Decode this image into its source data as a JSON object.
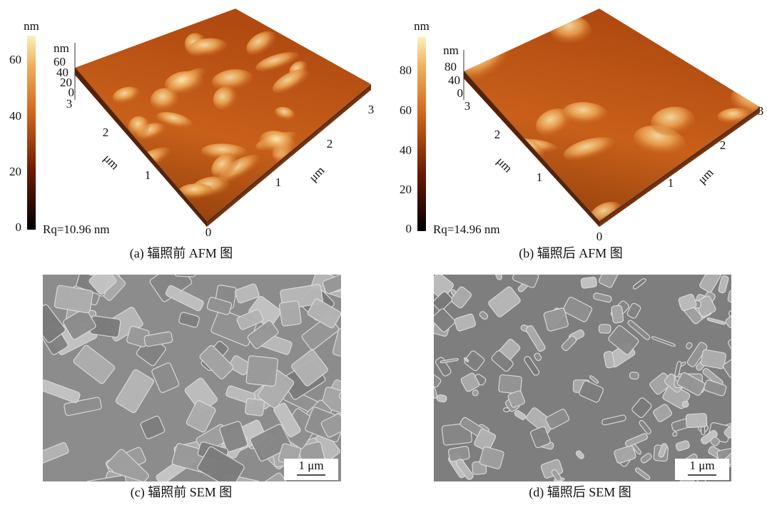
{
  "panels": [
    {
      "caption": "(a) 辐照前 AFM 图",
      "colorbar": {
        "unit": "nm",
        "ticks": [
          0,
          20,
          40,
          60
        ]
      },
      "height_axis": {
        "unit": "nm",
        "ticks": [
          60,
          40,
          20,
          0
        ]
      },
      "left_axis": {
        "unit": "μm",
        "ticks": [
          3,
          2,
          1
        ]
      },
      "right_axis": {
        "unit": "μm",
        "ticks": [
          1,
          2,
          3
        ]
      },
      "origin": 0,
      "roughness": "Rq=10.96 nm"
    },
    {
      "caption": "(b) 辐照后 AFM 图",
      "colorbar": {
        "unit": "nm",
        "ticks": [
          0,
          20,
          40,
          60,
          80
        ]
      },
      "height_axis": {
        "unit": "nm",
        "ticks": [
          80,
          40,
          0
        ]
      },
      "left_axis": {
        "unit": "μm",
        "ticks": [
          3,
          2,
          1
        ]
      },
      "right_axis": {
        "unit": "μm",
        "ticks": [
          1,
          2,
          3
        ]
      },
      "origin": 0,
      "roughness": "Rq=14.96 nm"
    },
    {
      "caption": "(c) 辐照前 SEM 图",
      "scale_bar": "1 μm"
    },
    {
      "caption": "(d) 辐照后 SEM 图",
      "scale_bar": "1 μm"
    }
  ]
}
